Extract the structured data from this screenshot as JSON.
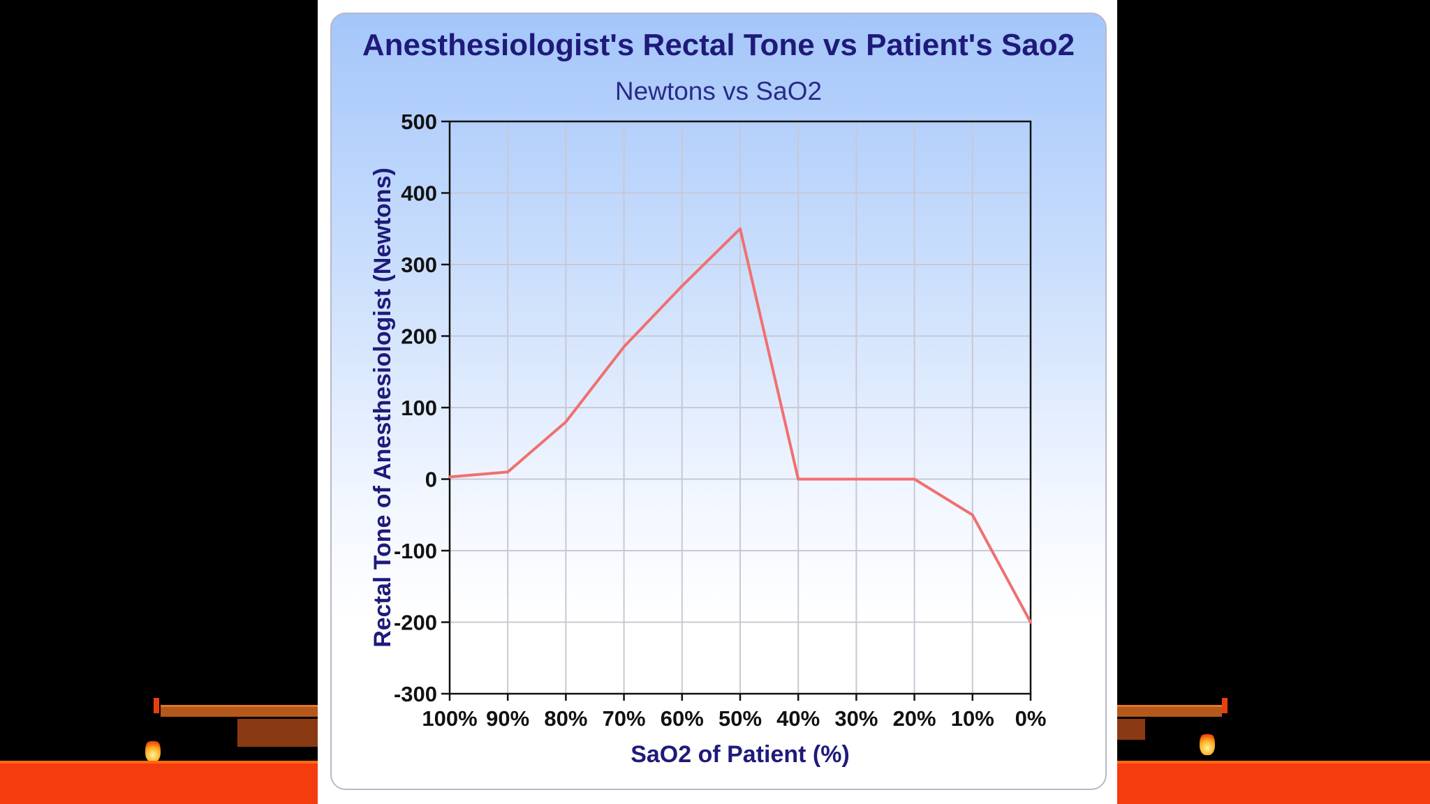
{
  "chart_data": {
    "type": "line",
    "title": "Anesthesiologist's Rectal Tone vs Patient's Sao2",
    "subtitle": "Newtons vs SaO2",
    "xlabel": "SaO2 of Patient (%)",
    "ylabel": "Rectal Tone of Anesthesiologist (Newtons)",
    "categories": [
      "100%",
      "90%",
      "80%",
      "70%",
      "60%",
      "50%",
      "40%",
      "30%",
      "20%",
      "10%",
      "0%"
    ],
    "y_ticks": [
      "500",
      "400",
      "300",
      "200",
      "100",
      "0",
      "-100",
      "-200",
      "-300"
    ],
    "ylim": [
      -300,
      500
    ],
    "grid": true,
    "legend": "none",
    "series": [
      {
        "values": [
          3,
          10,
          80,
          185,
          270,
          350,
          0,
          0,
          0,
          -50,
          -200
        ],
        "color": "#f07070"
      }
    ]
  }
}
